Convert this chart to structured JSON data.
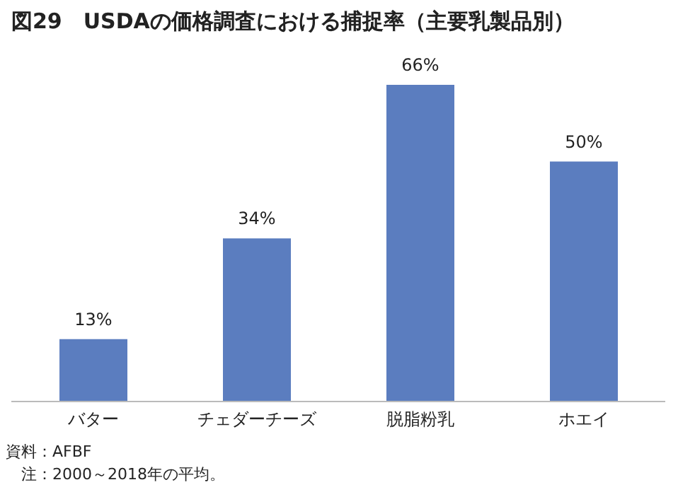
{
  "chart_data": {
    "type": "bar",
    "title": "図29　USDAの価格調査における捕捉率（主要乳製品別）",
    "categories": [
      "バター",
      "チェダーチーズ",
      "脱脂粉乳",
      "ホエイ"
    ],
    "values": [
      13,
      34,
      66,
      50
    ],
    "value_labels": [
      "13%",
      "34%",
      "66%",
      "50%"
    ],
    "color": "#5b7dbf",
    "grid": false,
    "legend": false,
    "tick_labels": "x",
    "annotations": [
      "資料：AFBF",
      "　注：2000～2018年の平均。"
    ]
  }
}
